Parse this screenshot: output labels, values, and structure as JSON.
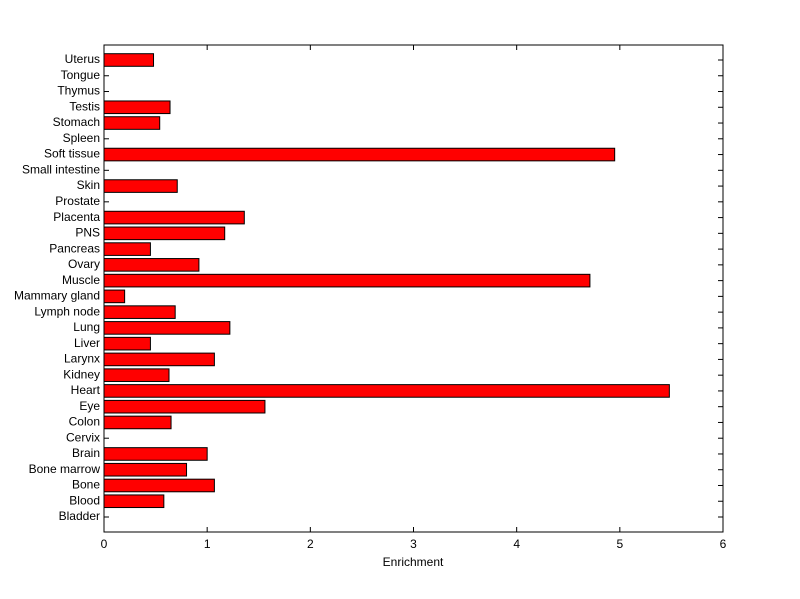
{
  "chart_data": {
    "type": "bar",
    "orientation": "horizontal",
    "xlabel": "Enrichment",
    "categories": [
      "Bladder",
      "Blood",
      "Bone",
      "Bone marrow",
      "Brain",
      "Cervix",
      "Colon",
      "Eye",
      "Heart",
      "Kidney",
      "Larynx",
      "Liver",
      "Lung",
      "Lymph node",
      "Mammary gland",
      "Muscle",
      "Ovary",
      "Pancreas",
      "PNS",
      "Placenta",
      "Prostate",
      "Skin",
      "Small intestine",
      "Soft tissue",
      "Spleen",
      "Stomach",
      "Testis",
      "Thymus",
      "Tongue",
      "Uterus"
    ],
    "values": [
      0,
      0.58,
      1.07,
      0.8,
      1.0,
      0,
      0.65,
      1.56,
      5.48,
      0.63,
      1.07,
      0.45,
      1.22,
      0.69,
      0.2,
      4.71,
      0.92,
      0.45,
      1.17,
      1.36,
      0,
      0.71,
      0,
      4.95,
      0,
      0.54,
      0.64,
      0,
      0,
      0.48
    ],
    "color": "#ff0000",
    "xlim": [
      0,
      6
    ],
    "xticks": [
      0,
      1,
      2,
      3,
      4,
      5,
      6
    ],
    "grid": false
  }
}
